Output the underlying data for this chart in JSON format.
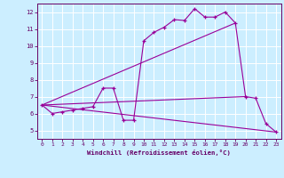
{
  "xlabel": "Windchill (Refroidissement éolien,°C)",
  "background_color": "#cceeff",
  "grid_color": "#aaddcc",
  "line_color": "#990099",
  "xlim": [
    -0.5,
    23.5
  ],
  "ylim": [
    4.5,
    12.5
  ],
  "yticks": [
    5,
    6,
    7,
    8,
    9,
    10,
    11,
    12
  ],
  "xticks": [
    0,
    1,
    2,
    3,
    4,
    5,
    6,
    7,
    8,
    9,
    10,
    11,
    12,
    13,
    14,
    15,
    16,
    17,
    18,
    19,
    20,
    21,
    22,
    23
  ],
  "main_line": {
    "x": [
      0,
      1,
      2,
      3,
      4,
      5,
      6,
      7,
      8,
      9,
      10,
      11,
      12,
      13,
      14,
      15,
      16,
      17,
      18,
      19,
      20,
      21,
      22,
      23
    ],
    "y": [
      6.5,
      6.0,
      6.1,
      6.2,
      6.3,
      6.4,
      7.5,
      7.5,
      5.6,
      5.6,
      10.3,
      10.8,
      11.1,
      11.55,
      11.5,
      12.2,
      11.7,
      11.7,
      12.0,
      11.35,
      7.0,
      6.9,
      5.4,
      4.9
    ]
  },
  "trend_lines": [
    {
      "x": [
        0,
        19
      ],
      "y": [
        6.5,
        11.35
      ]
    },
    {
      "x": [
        0,
        23
      ],
      "y": [
        6.5,
        4.9
      ]
    },
    {
      "x": [
        0,
        20
      ],
      "y": [
        6.5,
        7.0
      ]
    }
  ]
}
